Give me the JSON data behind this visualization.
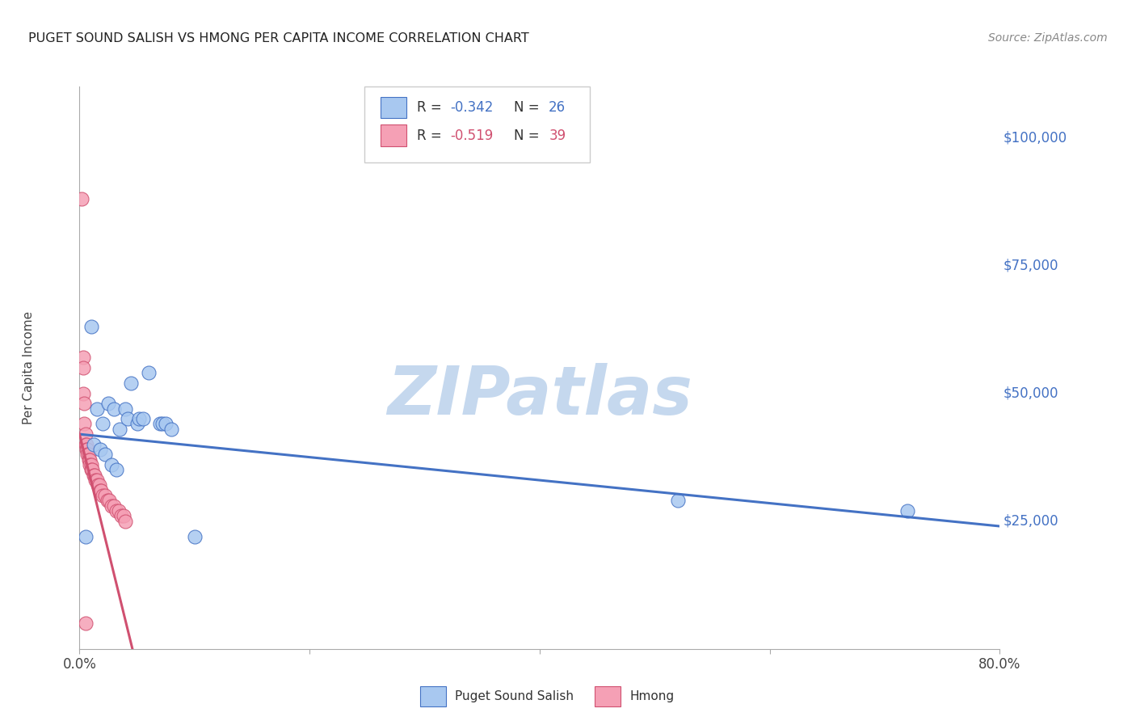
{
  "title": "PUGET SOUND SALISH VS HMONG PER CAPITA INCOME CORRELATION CHART",
  "source": "Source: ZipAtlas.com",
  "ylabel": "Per Capita Income",
  "xlim": [
    0.0,
    0.8
  ],
  "ylim": [
    0,
    110000
  ],
  "yticks": [
    25000,
    50000,
    75000,
    100000
  ],
  "ytick_labels": [
    "$25,000",
    "$50,000",
    "$75,000",
    "$100,000"
  ],
  "xticks": [
    0.0,
    0.2,
    0.4,
    0.6,
    0.8
  ],
  "xtick_labels": [
    "0.0%",
    "",
    "",
    "",
    "80.0%"
  ],
  "background_color": "#ffffff",
  "grid_color": "#cccccc",
  "salish_color": "#a8c8f0",
  "hmong_color": "#f5a0b5",
  "salish_line_color": "#4472c4",
  "hmong_line_color": "#d05070",
  "watermark_color": "#c5d8ee",
  "salish_x": [
    0.005,
    0.01,
    0.012,
    0.015,
    0.018,
    0.02,
    0.022,
    0.025,
    0.028,
    0.03,
    0.032,
    0.035,
    0.04,
    0.042,
    0.045,
    0.05,
    0.052,
    0.055,
    0.06,
    0.07,
    0.072,
    0.075,
    0.08,
    0.1,
    0.52,
    0.72
  ],
  "salish_y": [
    22000,
    63000,
    40000,
    47000,
    39000,
    44000,
    38000,
    48000,
    36000,
    47000,
    35000,
    43000,
    47000,
    45000,
    52000,
    44000,
    45000,
    45000,
    54000,
    44000,
    44000,
    44000,
    43000,
    22000,
    29000,
    27000
  ],
  "hmong_x": [
    0.002,
    0.003,
    0.003,
    0.004,
    0.004,
    0.005,
    0.005,
    0.006,
    0.006,
    0.007,
    0.007,
    0.008,
    0.008,
    0.009,
    0.009,
    0.01,
    0.01,
    0.011,
    0.012,
    0.013,
    0.014,
    0.015,
    0.016,
    0.017,
    0.018,
    0.019,
    0.02,
    0.022,
    0.024,
    0.026,
    0.028,
    0.03,
    0.032,
    0.034,
    0.036,
    0.038,
    0.04,
    0.003,
    0.005
  ],
  "hmong_y": [
    88000,
    57000,
    50000,
    48000,
    44000,
    42000,
    40000,
    40000,
    39000,
    39000,
    38000,
    38000,
    37000,
    37000,
    36000,
    36000,
    35000,
    35000,
    34000,
    34000,
    33000,
    33000,
    32000,
    32000,
    31000,
    31000,
    30000,
    30000,
    29000,
    29000,
    28000,
    28000,
    27000,
    27000,
    26000,
    26000,
    25000,
    55000,
    5000
  ],
  "salish_trendline_x": [
    0.0,
    0.8
  ],
  "salish_trendline_y": [
    42000,
    24000
  ],
  "hmong_trendline_x": [
    0.0,
    0.046
  ],
  "hmong_trendline_y": [
    42000,
    0
  ]
}
